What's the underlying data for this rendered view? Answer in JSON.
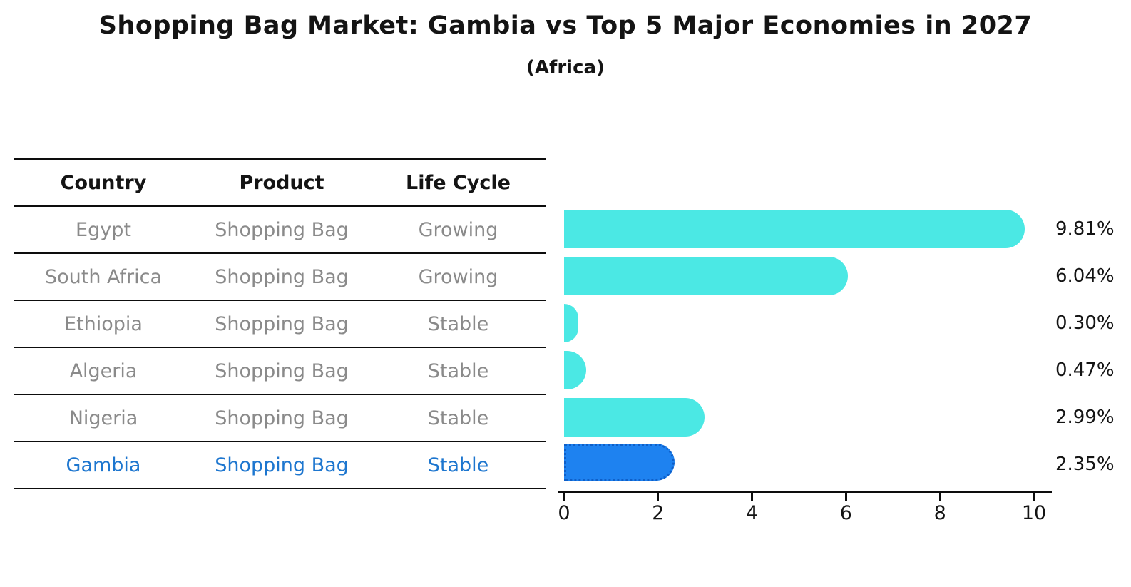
{
  "title": "Shopping Bag Market: Gambia vs Top 5 Major Economies in 2027",
  "subtitle": "(Africa)",
  "table": {
    "headers": {
      "country": "Country",
      "product": "Product",
      "life_cycle": "Life Cycle"
    },
    "rows": [
      {
        "country": "Egypt",
        "product": "Shopping Bag",
        "life_cycle": "Growing",
        "highlight": false
      },
      {
        "country": "South Africa",
        "product": "Shopping Bag",
        "life_cycle": "Growing",
        "highlight": false
      },
      {
        "country": "Ethiopia",
        "product": "Shopping Bag",
        "life_cycle": "Stable",
        "highlight": false
      },
      {
        "country": "Algeria",
        "product": "Shopping Bag",
        "life_cycle": "Stable",
        "highlight": false
      },
      {
        "country": "Nigeria",
        "product": "Shopping Bag",
        "life_cycle": "Stable",
        "highlight": false
      },
      {
        "country": "Gambia",
        "product": "Shopping Bag",
        "life_cycle": "Stable",
        "highlight": true
      }
    ]
  },
  "chart_data": {
    "type": "bar",
    "orientation": "horizontal",
    "title": "Shopping Bag Market: Gambia vs Top 5 Major Economies in 2027",
    "subtitle": "(Africa)",
    "categories": [
      "Egypt",
      "South Africa",
      "Ethiopia",
      "Algeria",
      "Nigeria",
      "Gambia"
    ],
    "values": [
      9.81,
      6.04,
      0.3,
      0.47,
      2.99,
      2.35
    ],
    "value_labels": [
      "9.81%",
      "6.04%",
      "0.30%",
      "0.47%",
      "2.99%",
      "2.35%"
    ],
    "xlabel": "",
    "ylabel": "",
    "xlim": [
      0,
      10.5
    ],
    "x_ticks": [
      0,
      2,
      4,
      6,
      8,
      10
    ],
    "grid": false,
    "legend": null,
    "highlight_category": "Gambia",
    "colors": {
      "bar_default": "#4be8e4",
      "bar_highlight": "#1e82f0",
      "bar_highlight_border": "#0f5fc8",
      "highlight_text": "#1d76cf",
      "row_text": "#8a8a8a",
      "header_text": "#141414"
    }
  }
}
